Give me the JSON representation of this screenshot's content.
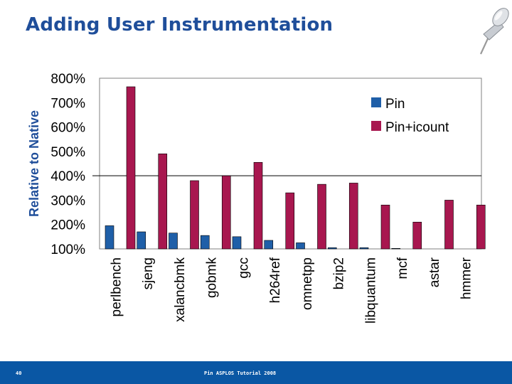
{
  "slide": {
    "title": "Adding User Instrumentation",
    "footer_page": "40",
    "footer_text": "Pin ASPLOS Tutorial 2008"
  },
  "colors": {
    "title": "#1f4e9a",
    "series_pin": "#1f5fa8",
    "series_icount": "#a8174f",
    "footer": "#0a57a4"
  },
  "logo": {
    "icon": "push-pin-icon"
  },
  "chart_data": {
    "type": "bar",
    "title": "",
    "xlabel": "",
    "ylabel": "Relative to Native",
    "ylim": [
      100,
      800
    ],
    "yticks": [
      100,
      200,
      300,
      400,
      500,
      600,
      700,
      800
    ],
    "ytick_labels": [
      "100%",
      "200%",
      "300%",
      "400%",
      "500%",
      "600%",
      "700%",
      "800%"
    ],
    "reference_line": 400,
    "legend_position": "top-right",
    "categories": [
      "perlbench",
      "sjeng",
      "xalancbmk",
      "gobmk",
      "gcc",
      "h264ref",
      "omnetpp",
      "bzip2",
      "libquantum",
      "mcf",
      "astar",
      "hmmer"
    ],
    "series": [
      {
        "name": "Pin",
        "color": "#1f5fa8",
        "values": [
          195,
          170,
          165,
          155,
          150,
          135,
          125,
          105,
          105,
          102,
          100,
          100
        ]
      },
      {
        "name": "Pin+icount",
        "color": "#a8174f",
        "values": [
          765,
          490,
          380,
          400,
          455,
          330,
          365,
          370,
          280,
          210,
          300,
          280
        ]
      }
    ]
  }
}
